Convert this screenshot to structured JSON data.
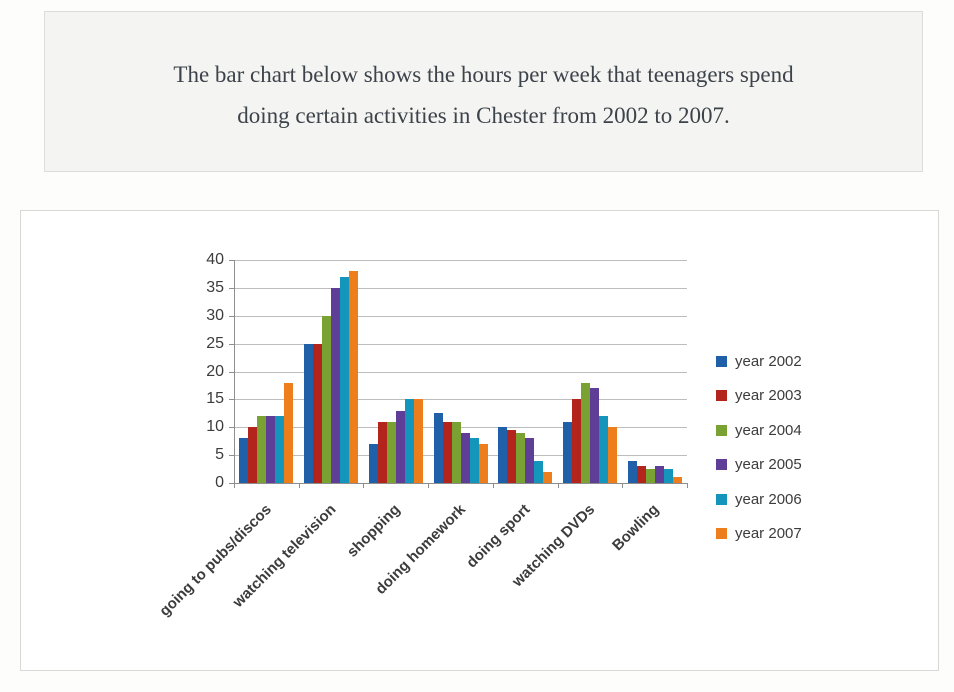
{
  "prompt": {
    "lines": [
      "The bar chart below shows the hours per week that teenagers spend",
      "doing certain activities in Chester from 2002 to 2007."
    ]
  },
  "chart_data": {
    "type": "bar",
    "title": "",
    "xlabel": "",
    "ylabel": "",
    "categories": [
      "going to pubs/discos",
      "watching television",
      "shopping",
      "doing homework",
      "doing sport",
      "watching DVDs",
      "Bowling"
    ],
    "series": [
      {
        "name": "year 2002",
        "color": "#2060a8",
        "values": [
          8,
          25,
          7,
          12.5,
          10,
          11,
          4
        ]
      },
      {
        "name": "year 2003",
        "color": "#b2241c",
        "values": [
          10,
          25,
          11,
          11,
          9.5,
          15,
          3
        ]
      },
      {
        "name": "year 2004",
        "color": "#79a233",
        "values": [
          12,
          30,
          11,
          11,
          9,
          18,
          2.5
        ]
      },
      {
        "name": "year 2005",
        "color": "#5f3e97",
        "values": [
          12,
          35,
          13,
          9,
          8,
          17,
          3
        ]
      },
      {
        "name": "year 2006",
        "color": "#1496bc",
        "values": [
          12,
          37,
          15,
          8,
          4,
          12,
          2.5
        ]
      },
      {
        "name": "year 2007",
        "color": "#ee7d1c",
        "values": [
          18,
          38,
          15,
          7,
          2,
          10,
          1
        ]
      }
    ],
    "ylim": [
      0,
      40
    ],
    "yticks": [
      0,
      5,
      10,
      15,
      20,
      25,
      30,
      35,
      40
    ],
    "grid": true,
    "grid_color": "#bdbdbd",
    "axis_color": "#8e8e8e",
    "legend_position": "right",
    "category_label_rotation_deg": -45
  }
}
